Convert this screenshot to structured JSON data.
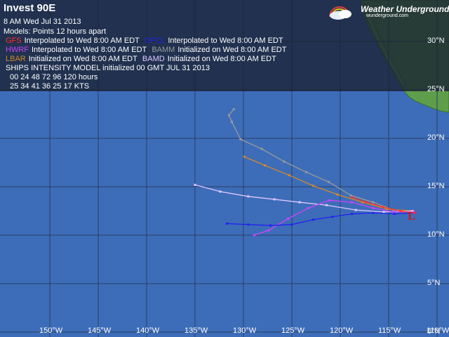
{
  "title": "Invest 90E",
  "date_line": "8 AM  Wed Jul 31 2013",
  "models_line": "Models:  Points 12 hours apart",
  "legend": {
    "row1": [
      {
        "model": "GFS",
        "color": "#ff3030",
        "text": "Interpolated to Wed 8:00 AM EDT"
      },
      {
        "model": "OFCL",
        "color": "#2222ee",
        "text": "Interpolated to Wed 8:00 AM EDT"
      }
    ],
    "row2": [
      {
        "model": "HWRF",
        "color": "#cc44ff",
        "text": "Interpolated to Wed 8:00 AM EDT"
      },
      {
        "model": "BAMM",
        "color": "#9a9a9a",
        "text": "Initialized on Wed 8:00 AM EDT"
      }
    ],
    "row3": [
      {
        "model": "LBAR",
        "color": "#d08a2c",
        "text": "Initialized on Wed 8:00 AM EDT"
      },
      {
        "model": "BAMD",
        "color": "#e0c8ff",
        "text": "Initialized on Wed 8:00 AM EDT"
      }
    ]
  },
  "ships": {
    "header": "SHIPS INTENSITY MODEL initialized 00 GMT JUL 31 2013",
    "hours_line": "00  24  48  72  96  120 hours",
    "kts_line": "25  34  41  36  25  17   KTS",
    "hours": [
      0,
      24,
      48,
      72,
      96,
      120
    ],
    "kts": [
      25,
      34,
      41,
      36,
      25,
      17
    ]
  },
  "brand": {
    "name": "Weather Underground",
    "url": "wunderground.com"
  },
  "storm_marker": "L",
  "lon_labels": [
    "150°W",
    "145°W",
    "140°W",
    "135°W",
    "130°W",
    "125°W",
    "120°W",
    "115°W",
    "110°W"
  ],
  "lat_labels": [
    "30°N",
    "25°N",
    "20°N",
    "15°N",
    "10°N",
    "5°N",
    "0°N"
  ],
  "map": {
    "ocean_color": "#3d6db8",
    "land_color": "#5e9e4a",
    "grid_color": "#2a3d66",
    "extent": {
      "lon": [
        -155,
        -110
      ],
      "lat": [
        -0.5,
        33
      ]
    },
    "tracks": [
      {
        "model": "BAMM",
        "color": "#9a9a9a",
        "points": [
          [
            -112.7,
            12.5
          ],
          [
            -114.5,
            12.6
          ],
          [
            -116.6,
            13.4
          ],
          [
            -118.9,
            14.1
          ],
          [
            -121.2,
            15.5
          ],
          [
            -123.5,
            16.5
          ],
          [
            -125.8,
            17.6
          ],
          [
            -128.1,
            18.9
          ],
          [
            -130.3,
            19.9
          ],
          [
            -131.2,
            21.7
          ],
          [
            -131.5,
            22.4
          ],
          [
            -131.0,
            23.0
          ]
        ]
      },
      {
        "model": "LBAR",
        "color": "#d08a2c",
        "points": [
          [
            -112.6,
            12.5
          ],
          [
            -115.2,
            12.7
          ],
          [
            -117.7,
            13.4
          ],
          [
            -120.3,
            14.2
          ],
          [
            -122.8,
            15.1
          ],
          [
            -125.3,
            16.2
          ],
          [
            -127.8,
            17.2
          ],
          [
            -129.9,
            18.1
          ]
        ]
      },
      {
        "model": "BAMD",
        "color": "#e0c8ff",
        "points": [
          [
            -112.5,
            12.5
          ],
          [
            -115.5,
            12.4
          ],
          [
            -118.4,
            12.6
          ],
          [
            -121.4,
            13.1
          ],
          [
            -124.2,
            13.4
          ],
          [
            -126.8,
            13.7
          ],
          [
            -129.5,
            14.0
          ],
          [
            -132.4,
            14.5
          ],
          [
            -135.0,
            15.2
          ]
        ]
      },
      {
        "model": "HWRF",
        "color": "#cc44ff",
        "points": [
          [
            -112.4,
            12.4
          ],
          [
            -114.5,
            12.4
          ],
          [
            -116.6,
            12.8
          ],
          [
            -118.8,
            13.4
          ],
          [
            -121.1,
            13.6
          ],
          [
            -123.3,
            12.8
          ],
          [
            -125.4,
            11.7
          ],
          [
            -127.4,
            10.5
          ],
          [
            -128.9,
            10.0
          ]
        ]
      },
      {
        "model": "OFCL",
        "color": "#2222ee",
        "points": [
          [
            -112.3,
            12.3
          ],
          [
            -114.4,
            12.2
          ],
          [
            -116.6,
            12.3
          ],
          [
            -118.8,
            12.2
          ],
          [
            -120.8,
            11.9
          ],
          [
            -122.8,
            11.6
          ],
          [
            -125.0,
            11.1
          ],
          [
            -127.2,
            11.0
          ],
          [
            -129.5,
            11.1
          ],
          [
            -131.7,
            11.2
          ]
        ]
      },
      {
        "model": "GFS",
        "color": "#ff3030",
        "points": [
          [
            -112.3,
            12.3
          ],
          [
            -113.8,
            12.5
          ],
          [
            -115.6,
            12.9
          ],
          [
            -117.3,
            13.4
          ],
          [
            -118.8,
            13.9
          ]
        ]
      }
    ]
  }
}
